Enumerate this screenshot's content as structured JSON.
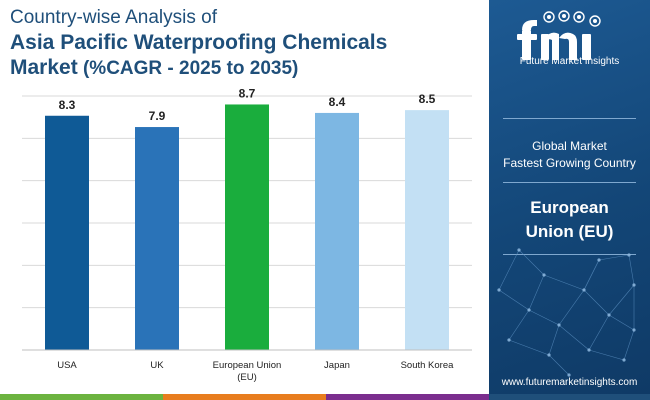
{
  "title": {
    "line1": "Country-wise Analysis of",
    "line2": "Asia Pacific Waterproofing Chemicals",
    "line3_market": "Market",
    "line3_cagr": "(%CAGR - 2025 to 2035)"
  },
  "chart_data": {
    "type": "bar",
    "title": "Country-wise Analysis of Asia Pacific Waterproofing Chemicals Market (%CAGR - 2025 to 2035)",
    "categories": [
      "USA",
      "UK",
      "European Union (EU)",
      "Japan",
      "South Korea"
    ],
    "category_lines": [
      [
        "USA"
      ],
      [
        "UK"
      ],
      [
        "European Union",
        "(EU)"
      ],
      [
        "Japan"
      ],
      [
        "South Korea"
      ]
    ],
    "values": [
      8.3,
      7.9,
      8.7,
      8.4,
      8.5
    ],
    "value_labels": [
      "8.3",
      "7.9",
      "8.7",
      "8.4",
      "8.5"
    ],
    "colors": [
      "#0f5a96",
      "#2a73b8",
      "#1aad3d",
      "#7db7e3",
      "#c3e0f4"
    ],
    "ylim": [
      0,
      9
    ],
    "grid": true,
    "xlabel": "",
    "ylabel": ""
  },
  "panel": {
    "brand": "Future Market Insights",
    "label_line1": "Global Market",
    "label_line2": "Fastest Growing Country",
    "value_line1": "European",
    "value_line2": "Union (EU)",
    "website": "www.futuremarketinsights.com"
  },
  "colors": {
    "title": "#1f4f7a",
    "panel": "#134677",
    "grid": "#d9d9d9"
  }
}
